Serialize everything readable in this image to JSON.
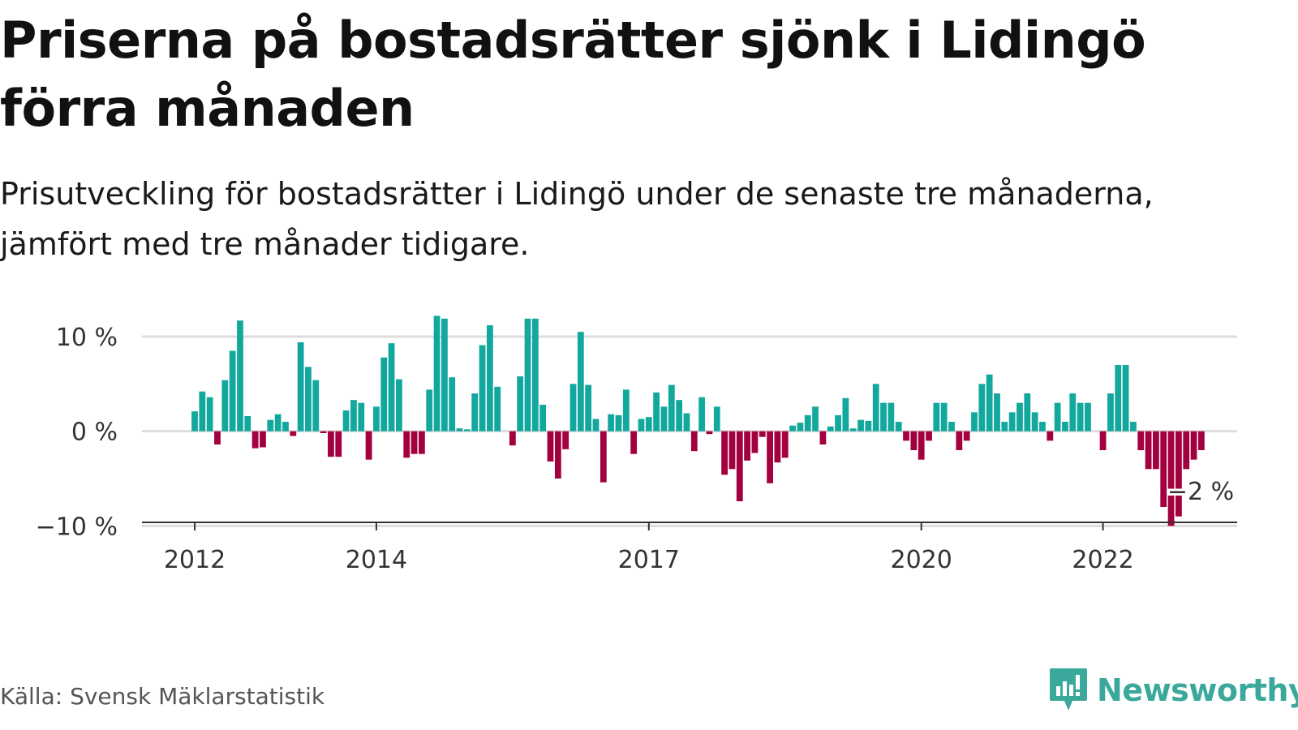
{
  "title": "Priserna på bostadsrätter sjönk i Lidingö förra månaden",
  "subtitle": "Prisutveckling för bostadsrätter i Lidingö under de senaste tre månaderna, jämfört med tre månader tidigare.",
  "source": "Källa: Svensk Mäklarstatistik",
  "brand": {
    "name": "Newsworthy",
    "icon": "newsworthy-logo-icon",
    "color": "#3aa89a"
  },
  "colors": {
    "positive": "#13a89e",
    "negative": "#a3003f",
    "grid": "#dddddd",
    "axis": "#333333"
  },
  "chart_data": {
    "type": "bar",
    "ylim": [
      -11,
      13
    ],
    "y_ticks": [
      {
        "value": 10,
        "label": "10 %"
      },
      {
        "value": 0,
        "label": "0 %"
      },
      {
        "value": -10,
        "label": "−10 %"
      }
    ],
    "x_ticks": [
      {
        "value": "2012-01",
        "label": "2012"
      },
      {
        "value": "2014-01",
        "label": "2014"
      },
      {
        "value": "2017-01",
        "label": "2017"
      },
      {
        "value": "2020-01",
        "label": "2020"
      },
      {
        "value": "2022-01",
        "label": "2022"
      }
    ],
    "annotation": {
      "x": "2023-02",
      "value": -2,
      "label": "−2 %"
    },
    "series": [
      {
        "x": [
          "2012-01",
          "2012-02",
          "2012-03",
          "2012-04",
          "2012-05",
          "2012-06",
          "2012-07",
          "2012-08",
          "2012-09",
          "2012-10",
          "2012-11",
          "2012-12",
          "2013-01",
          "2013-02",
          "2013-03",
          "2013-04",
          "2013-05",
          "2013-06",
          "2013-07",
          "2013-08",
          "2013-09",
          "2013-10",
          "2013-11",
          "2013-12",
          "2014-01",
          "2014-02",
          "2014-03",
          "2014-04",
          "2014-05",
          "2014-06",
          "2014-07",
          "2014-08",
          "2014-09",
          "2014-10",
          "2014-11",
          "2014-12",
          "2015-01",
          "2015-02",
          "2015-03",
          "2015-04",
          "2015-05",
          "2015-06",
          "2015-07",
          "2015-08",
          "2015-09",
          "2015-10",
          "2015-11",
          "2015-12",
          "2016-01",
          "2016-02",
          "2016-03",
          "2016-04",
          "2016-05",
          "2016-06",
          "2016-07",
          "2016-08",
          "2016-09",
          "2016-10",
          "2016-11",
          "2016-12",
          "2017-01",
          "2017-02",
          "2017-03",
          "2017-04",
          "2017-05",
          "2017-06",
          "2017-07",
          "2017-08",
          "2017-09",
          "2017-10",
          "2017-11",
          "2017-12",
          "2018-01",
          "2018-02",
          "2018-03",
          "2018-04",
          "2018-05",
          "2018-06",
          "2018-07",
          "2018-08",
          "2018-09",
          "2018-10",
          "2018-11",
          "2018-12",
          "2019-01",
          "2019-02",
          "2019-03",
          "2019-04",
          "2019-05",
          "2019-06",
          "2019-07",
          "2019-08",
          "2019-09",
          "2019-10",
          "2019-11",
          "2019-12",
          "2020-01",
          "2020-02",
          "2020-03",
          "2020-04",
          "2020-05",
          "2020-06",
          "2020-07",
          "2020-08",
          "2020-09",
          "2020-10",
          "2020-11",
          "2020-12",
          "2021-01",
          "2021-02",
          "2021-03",
          "2021-04",
          "2021-05",
          "2021-06",
          "2021-07",
          "2021-08",
          "2021-09",
          "2021-10",
          "2021-11",
          "2021-12",
          "2022-01",
          "2022-02",
          "2022-03",
          "2022-04",
          "2022-05",
          "2022-06",
          "2022-07",
          "2022-08",
          "2022-09",
          "2022-10",
          "2022-11",
          "2022-12",
          "2023-01",
          "2023-02"
        ],
        "values": [
          2.1,
          4.2,
          3.6,
          -1.4,
          5.4,
          8.5,
          11.7,
          1.6,
          -1.8,
          -1.7,
          1.2,
          1.8,
          1.0,
          -0.5,
          9.4,
          6.8,
          5.4,
          -0.2,
          -2.7,
          -2.7,
          2.2,
          3.3,
          3.0,
          -3.0,
          2.6,
          7.8,
          9.3,
          5.5,
          -2.8,
          -2.4,
          -2.4,
          4.4,
          12.2,
          11.9,
          5.7,
          0.3,
          0.2,
          4.0,
          9.1,
          11.2,
          4.7,
          0.0,
          -1.5,
          5.8,
          11.9,
          11.9,
          2.8,
          -3.2,
          -5.0,
          -1.9,
          5.0,
          10.5,
          4.9,
          1.3,
          -5.4,
          1.8,
          1.7,
          4.4,
          -2.4,
          1.3,
          1.5,
          4.1,
          2.6,
          4.9,
          3.3,
          1.9,
          -2.1,
          3.6,
          -0.3,
          2.6,
          -4.6,
          -4.0,
          -7.4,
          -3.1,
          -2.3,
          -0.6,
          -5.5,
          -3.3,
          -2.8,
          0.6,
          0.9,
          1.7,
          2.6,
          -1.4,
          0.5,
          1.7,
          3.5,
          0.3,
          1.2,
          1.1,
          5.0,
          3.0,
          3.0,
          1.0,
          -1.0,
          -2.0,
          -3.0,
          -1.0,
          3.0,
          3.0,
          1.0,
          -2.0,
          -1.0,
          2.0,
          5.0,
          6.0,
          4.0,
          1.0,
          2.0,
          3.0,
          4.0,
          2.0,
          1.0,
          -1.0,
          3.0,
          1.0,
          4.0,
          3.0,
          3.0,
          0.0,
          -2.0,
          4.0,
          7.0,
          7.0,
          1.0,
          -2.0,
          -4.0,
          -4.0,
          -8.0,
          -10.0,
          -9.0,
          -4.0,
          -3.0,
          -2.0
        ]
      }
    ]
  }
}
